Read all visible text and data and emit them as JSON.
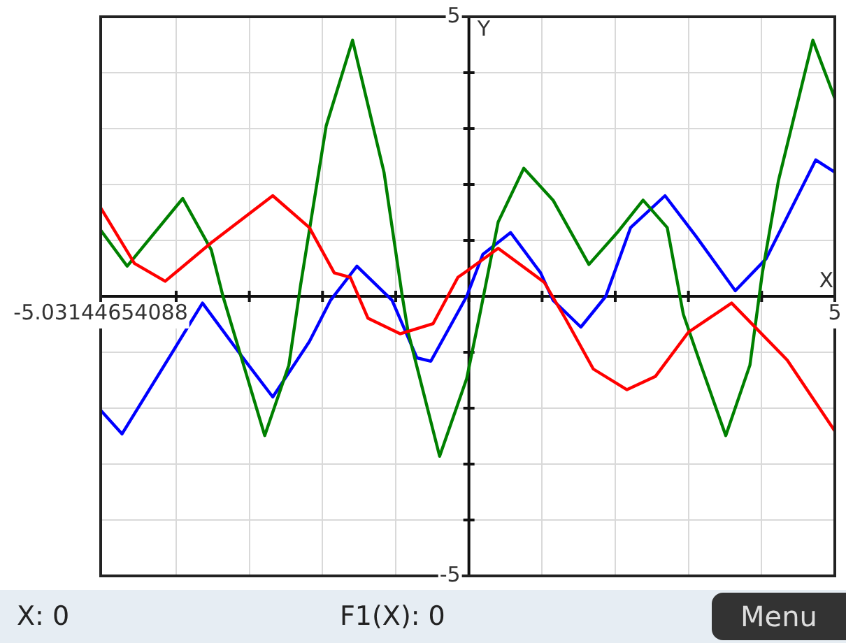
{
  "chart_data": {
    "type": "line",
    "xlabel": "X",
    "ylabel": "Y",
    "annotations": [
      "X: 0",
      "F1(X): 0",
      "Menu"
    ],
    "xlim": [
      -5.03144654088,
      5
    ],
    "ylim": [
      -5,
      5
    ],
    "xticks": [
      {
        "value": -5.03144654088,
        "label": "-5.03144654088"
      },
      {
        "value": -4,
        "label": null
      },
      {
        "value": -3,
        "label": null
      },
      {
        "value": -2,
        "label": null
      },
      {
        "value": -1,
        "label": null
      },
      {
        "value": 0,
        "label": null
      },
      {
        "value": 1,
        "label": null
      },
      {
        "value": 2,
        "label": null
      },
      {
        "value": 3,
        "label": null
      },
      {
        "value": 4,
        "label": null
      },
      5
    ],
    "yticks": [
      -5,
      {
        "value": -4,
        "label": null
      },
      {
        "value": -3,
        "label": null
      },
      {
        "value": -2,
        "label": null
      },
      {
        "value": -1,
        "label": null
      },
      {
        "value": 0,
        "label": null
      },
      {
        "value": 1,
        "label": null
      },
      {
        "value": 2,
        "label": null
      },
      {
        "value": 3,
        "label": null
      },
      {
        "value": 4,
        "label": null
      },
      5
    ],
    "grid": true,
    "marker": "none",
    "line_style": "solid",
    "series": [
      {
        "color": "#ff0000",
        "x": [
          -5.03,
          -4.57,
          -4.15,
          -3.52,
          -2.68,
          -2.18,
          -1.84,
          -1.62,
          -1.38,
          -0.94,
          -0.49,
          -0.15,
          -0.03,
          0.4,
          1.03,
          1.32,
          1.7,
          2.16,
          2.55,
          3.0,
          3.59,
          4.35,
          5.0
        ],
        "values": [
          1.58,
          0.59,
          0.27,
          0.96,
          1.8,
          1.23,
          0.42,
          0.34,
          -0.39,
          -0.67,
          -0.49,
          0.34,
          0.45,
          0.86,
          0.25,
          -0.4,
          -1.3,
          -1.67,
          -1.43,
          -0.64,
          -0.12,
          -1.14,
          -2.41
        ]
      },
      {
        "color": "#008000",
        "x": [
          -5.03,
          -4.67,
          -3.91,
          -3.52,
          -3.36,
          -2.79,
          -2.46,
          -2.3,
          -1.95,
          -1.59,
          -1.16,
          -0.91,
          -0.83,
          -0.4,
          -0.03,
          0.15,
          0.4,
          0.75,
          1.15,
          1.64,
          2.04,
          2.38,
          2.71,
          2.93,
          3.17,
          3.51,
          3.84,
          4.01,
          4.23,
          4.7,
          5.0
        ],
        "values": [
          1.18,
          0.54,
          1.75,
          0.83,
          0,
          -2.49,
          -1.23,
          0.2,
          3.05,
          4.58,
          2.22,
          0,
          -0.64,
          -2.86,
          -1.47,
          -0.32,
          1.33,
          2.29,
          1.72,
          0.57,
          1.16,
          1.72,
          1.23,
          -0.32,
          -1.23,
          -2.49,
          -1.23,
          0.42,
          2.07,
          4.58,
          3.54
        ]
      },
      {
        "color": "#0000ff",
        "x": [
          -5.03,
          -4.74,
          -4.08,
          -3.64,
          -3.07,
          -2.68,
          -2.18,
          -1.89,
          -1.53,
          -1.05,
          -0.71,
          -0.52,
          -0.03,
          0.19,
          0.57,
          0.98,
          1.15,
          1.53,
          1.87,
          2.21,
          2.68,
          3.1,
          3.64,
          4.06,
          4.74,
          5.0
        ],
        "values": [
          -2.04,
          -2.46,
          -1.06,
          -0.12,
          -1.13,
          -1.8,
          -0.81,
          -0.07,
          0.54,
          -0.07,
          -1.1,
          -1.16,
          0,
          0.75,
          1.14,
          0.42,
          -0.07,
          -0.55,
          0,
          1.23,
          1.8,
          1.08,
          0.1,
          0.67,
          2.44,
          2.22
        ]
      }
    ]
  }
}
